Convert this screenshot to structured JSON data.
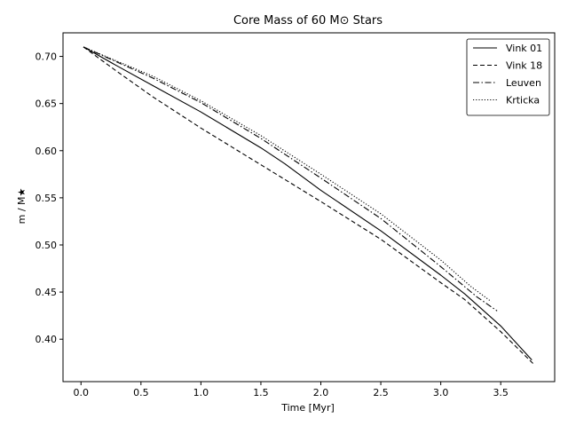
{
  "chart_data": {
    "type": "line",
    "title": "Core Mass of 60 M⊙ Stars",
    "xlabel": "Time [Myr]",
    "ylabel": "m / M★",
    "xlim": [
      -0.15,
      3.95
    ],
    "ylim": [
      0.355,
      0.725
    ],
    "x_ticks": [
      0.0,
      0.5,
      1.0,
      1.5,
      2.0,
      2.5,
      3.0,
      3.5
    ],
    "x_tick_labels": [
      "0.0",
      "0.5",
      "1.0",
      "1.5",
      "2.0",
      "2.5",
      "3.0",
      "3.5"
    ],
    "y_ticks": [
      0.4,
      0.45,
      0.5,
      0.55,
      0.6,
      0.65,
      0.7
    ],
    "y_tick_labels": [
      "0.40",
      "0.45",
      "0.50",
      "0.55",
      "0.60",
      "0.65",
      "0.70"
    ],
    "grid": false,
    "legend_position": "top-right",
    "series": [
      {
        "name": "Vink 01",
        "dash": "solid",
        "color": "#000000",
        "x": [
          0.02,
          0.3,
          0.6,
          1.0,
          1.5,
          1.7,
          2.0,
          2.5,
          3.0,
          3.2,
          3.5,
          3.76
        ],
        "y": [
          0.71,
          0.69,
          0.669,
          0.641,
          0.603,
          0.586,
          0.558,
          0.515,
          0.468,
          0.448,
          0.414,
          0.378
        ]
      },
      {
        "name": "Vink 18",
        "dash": "dashed",
        "color": "#000000",
        "x": [
          0.02,
          0.3,
          0.6,
          1.0,
          1.5,
          2.0,
          2.5,
          3.0,
          3.2,
          3.5,
          3.78
        ],
        "y": [
          0.71,
          0.684,
          0.657,
          0.624,
          0.585,
          0.546,
          0.506,
          0.46,
          0.442,
          0.408,
          0.373
        ]
      },
      {
        "name": "Leuven",
        "dash": "dashdot",
        "color": "#000000",
        "x": [
          0.02,
          0.3,
          0.6,
          1.0,
          1.5,
          2.0,
          2.5,
          3.0,
          3.3,
          3.47
        ],
        "y": [
          0.71,
          0.694,
          0.677,
          0.651,
          0.613,
          0.571,
          0.528,
          0.477,
          0.445,
          0.43
        ]
      },
      {
        "name": "Krticka",
        "dash": "dotted",
        "color": "#000000",
        "x": [
          0.02,
          0.3,
          0.6,
          1.0,
          1.5,
          2.0,
          2.5,
          3.0,
          3.25,
          3.42
        ],
        "y": [
          0.71,
          0.695,
          0.679,
          0.653,
          0.616,
          0.575,
          0.533,
          0.484,
          0.456,
          0.44
        ]
      }
    ]
  }
}
